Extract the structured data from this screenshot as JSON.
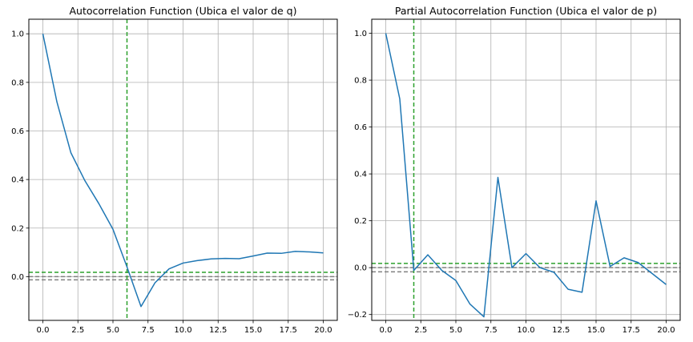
{
  "chart_data": [
    {
      "type": "line",
      "title": "Autocorrelation Function (Ubica el valor de q)",
      "xlabel": "",
      "ylabel": "",
      "xlim": [
        -1,
        21
      ],
      "ylim": [
        -0.18,
        1.06
      ],
      "xticks": [
        0,
        2.5,
        5,
        7.5,
        10,
        12.5,
        15,
        17.5,
        20
      ],
      "xtick_labels": [
        "0.0",
        "2.5",
        "5.0",
        "7.5",
        "10.0",
        "12.5",
        "15.0",
        "17.5",
        "20.0"
      ],
      "yticks": [
        0,
        0.2,
        0.4,
        0.6,
        0.8,
        1.0
      ],
      "ytick_labels": [
        "0.0",
        "0.2",
        "0.4",
        "0.6",
        "0.8",
        "1.0"
      ],
      "grid": true,
      "series": [
        {
          "x": [
            0,
            1,
            2,
            3,
            4,
            5,
            6,
            7,
            8,
            9,
            10,
            11,
            12,
            13,
            14,
            15,
            16,
            17,
            18,
            19,
            20
          ],
          "values": [
            1.0,
            0.72,
            0.51,
            0.395,
            0.3,
            0.195,
            0.04,
            -0.123,
            -0.025,
            0.032,
            0.056,
            0.066,
            0.073,
            0.075,
            0.074,
            0.085,
            0.097,
            0.096,
            0.104,
            0.102,
            0.098
          ],
          "color": "#1f77b4"
        }
      ],
      "hlines": [
        {
          "y": 0.018,
          "color": "#2ca02c",
          "style": "dashed"
        },
        {
          "y": 0.0,
          "color": "#808080",
          "style": "dashed"
        },
        {
          "y": -0.013,
          "color": "#808080",
          "style": "dashed"
        }
      ],
      "vlines": [
        {
          "x": 6,
          "color": "#2ca02c",
          "style": "dashed"
        }
      ]
    },
    {
      "type": "line",
      "title": "Partial Autocorrelation Function (Ubica el valor de p)",
      "xlabel": "",
      "ylabel": "",
      "xlim": [
        -1,
        21
      ],
      "ylim": [
        -0.225,
        1.06
      ],
      "xticks": [
        0,
        2.5,
        5,
        7.5,
        10,
        12.5,
        15,
        17.5,
        20
      ],
      "xtick_labels": [
        "0.0",
        "2.5",
        "5.0",
        "7.5",
        "10.0",
        "12.5",
        "15.0",
        "17.5",
        "20.0"
      ],
      "yticks": [
        -0.2,
        0,
        0.2,
        0.4,
        0.6,
        0.8,
        1.0
      ],
      "ytick_labels": [
        "−0.2",
        "0.0",
        "0.2",
        "0.4",
        "0.6",
        "0.8",
        "1.0"
      ],
      "grid": true,
      "series": [
        {
          "x": [
            0,
            1,
            2,
            3,
            4,
            5,
            6,
            7,
            8,
            9,
            10,
            11,
            12,
            13,
            14,
            15,
            16,
            17,
            18,
            19,
            20
          ],
          "values": [
            1.0,
            0.72,
            -0.012,
            0.055,
            -0.012,
            -0.055,
            -0.155,
            -0.21,
            0.385,
            0.0,
            0.06,
            0.0,
            -0.02,
            -0.092,
            -0.105,
            0.285,
            0.005,
            0.042,
            0.022,
            -0.025,
            -0.072
          ],
          "color": "#1f77b4"
        }
      ],
      "hlines": [
        {
          "y": 0.018,
          "color": "#2ca02c",
          "style": "dashed"
        },
        {
          "y": 0.0,
          "color": "#808080",
          "style": "dashed"
        },
        {
          "y": -0.018,
          "color": "#808080",
          "style": "dashed"
        }
      ],
      "vlines": [
        {
          "x": 2,
          "color": "#2ca02c",
          "style": "dashed"
        }
      ]
    }
  ]
}
